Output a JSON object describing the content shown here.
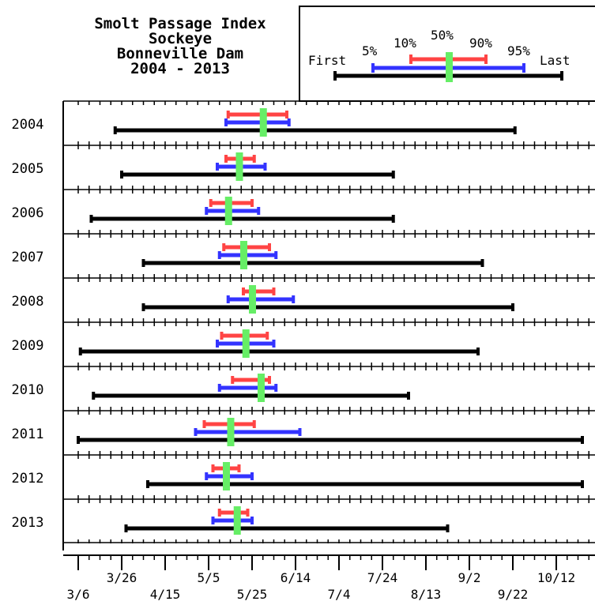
{
  "chart_data": {
    "type": "range",
    "title_lines": [
      "Smolt Passage Index",
      "Sockeye",
      "Bonneville Dam",
      "2004 - 2013"
    ],
    "legend": {
      "first": "First",
      "p5": "5%",
      "p10": "10%",
      "p50": "50%",
      "p90": "90%",
      "p95": "95%",
      "last": "Last"
    },
    "colors": {
      "range_first_last": "#000000",
      "range_5_95": "#3333ff",
      "range_10_90": "#ff4444",
      "median": "#66ee66"
    },
    "x_axis": {
      "start_date": "3/6",
      "end_date": "10/24",
      "tick_labels": [
        "3/6",
        "3/26",
        "4/15",
        "5/5",
        "5/25",
        "6/14",
        "7/4",
        "7/24",
        "8/13",
        "9/2",
        "9/22",
        "10/12"
      ],
      "tick_days": [
        0,
        20,
        40,
        60,
        80,
        100,
        120,
        140,
        160,
        180,
        200,
        220
      ]
    },
    "series": [
      {
        "year": "2004",
        "first": "3/23",
        "p5": "5/13",
        "p10": "5/14",
        "p50": "5/30",
        "p90": "6/10",
        "p95": "6/11",
        "last": "9/23"
      },
      {
        "year": "2005",
        "first": "3/26",
        "p5": "5/9",
        "p10": "5/13",
        "p50": "5/19",
        "p90": "5/26",
        "p95": "5/31",
        "last": "7/29"
      },
      {
        "year": "2006",
        "first": "3/12",
        "p5": "5/4",
        "p10": "5/6",
        "p50": "5/14",
        "p90": "5/25",
        "p95": "5/28",
        "last": "7/29"
      },
      {
        "year": "2007",
        "first": "4/5",
        "p5": "5/10",
        "p10": "5/12",
        "p50": "5/21",
        "p90": "6/2",
        "p95": "6/5",
        "last": "9/8"
      },
      {
        "year": "2008",
        "first": "4/5",
        "p5": "5/14",
        "p10": "5/21",
        "p50": "5/25",
        "p90": "6/4",
        "p95": "6/13",
        "last": "9/22"
      },
      {
        "year": "2009",
        "first": "3/7",
        "p5": "5/9",
        "p10": "5/11",
        "p50": "5/22",
        "p90": "6/1",
        "p95": "6/4",
        "last": "9/6"
      },
      {
        "year": "2010",
        "first": "3/13",
        "p5": "5/10",
        "p10": "5/16",
        "p50": "5/29",
        "p90": "6/2",
        "p95": "6/5",
        "last": "8/5"
      },
      {
        "year": "2011",
        "first": "3/6",
        "p5": "4/29",
        "p10": "5/3",
        "p50": "5/15",
        "p90": "5/26",
        "p95": "6/16",
        "last": "10/24"
      },
      {
        "year": "2012",
        "first": "4/7",
        "p5": "5/4",
        "p10": "5/7",
        "p50": "5/13",
        "p90": "5/19",
        "p95": "5/25",
        "last": "10/24"
      },
      {
        "year": "2013",
        "first": "3/28",
        "p5": "5/7",
        "p10": "5/10",
        "p50": "5/18",
        "p90": "5/23",
        "p95": "5/25",
        "last": "8/23"
      }
    ]
  }
}
